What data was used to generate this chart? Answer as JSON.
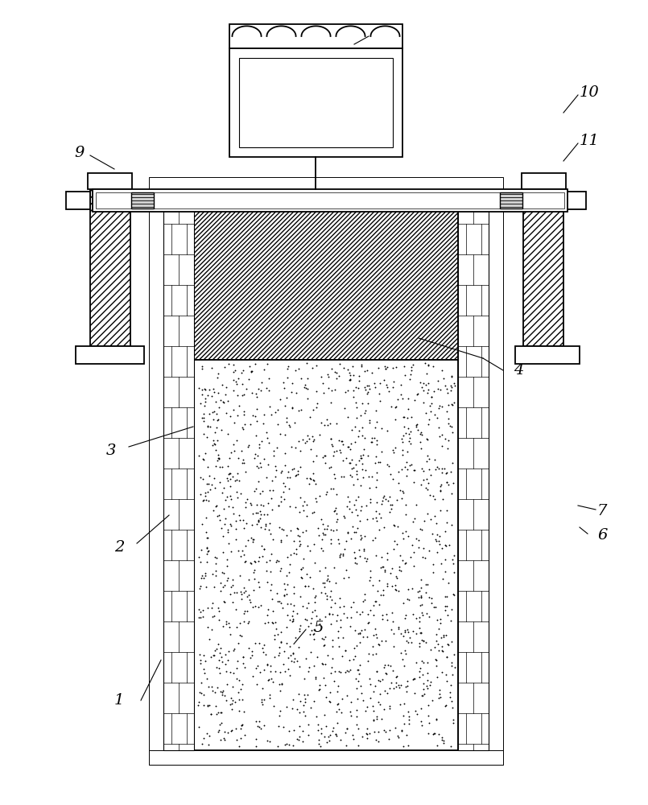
{
  "bg_color": "#ffffff",
  "line_color": "#000000",
  "label_color": "#000000",
  "figsize": [
    8.05,
    10.0
  ],
  "dpi": 100,
  "lw_main": 1.3,
  "lw_thin": 0.7,
  "label_fontsize": 14
}
